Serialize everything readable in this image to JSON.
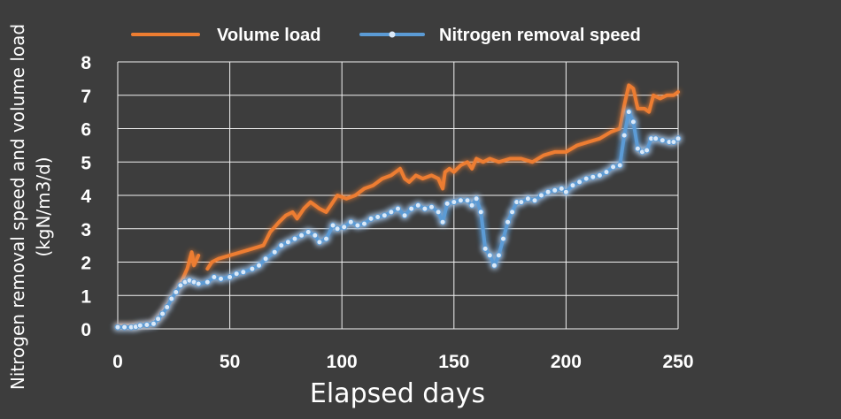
{
  "chart_data": {
    "type": "line",
    "xlabel": "Elapsed days",
    "ylabel_lines": [
      "Nitrogen removal speed and volume load",
      "(kgN/m3/d)"
    ],
    "xlim": [
      0,
      250
    ],
    "ylim": [
      0,
      8
    ],
    "x_ticks": [
      "0",
      "50",
      "100",
      "150",
      "200",
      "250"
    ],
    "y_ticks": [
      "0",
      "1",
      "2",
      "3",
      "4",
      "5",
      "6",
      "7",
      "8"
    ],
    "grid": true,
    "legend_position": "top",
    "series": [
      {
        "name": "Volume load",
        "color": "#ed7d31",
        "marker": false,
        "segments": [
          [
            [
              0,
              0.1
            ],
            [
              5,
              0.1
            ],
            [
              10,
              0.1
            ],
            [
              15,
              0.15
            ],
            [
              18,
              0.3
            ],
            [
              20,
              0.5
            ],
            [
              23,
              0.8
            ],
            [
              26,
              1.1
            ],
            [
              29,
              1.5
            ],
            [
              31,
              1.8
            ],
            [
              33,
              2.3
            ],
            [
              34,
              1.9
            ],
            [
              36,
              2.2
            ]
          ],
          [
            [
              40,
              1.8
            ],
            [
              42,
              2.0
            ],
            [
              45,
              2.1
            ],
            [
              50,
              2.2
            ],
            [
              55,
              2.3
            ],
            [
              60,
              2.4
            ],
            [
              65,
              2.5
            ],
            [
              68,
              2.9
            ],
            [
              72,
              3.2
            ],
            [
              75,
              3.4
            ],
            [
              78,
              3.5
            ],
            [
              80,
              3.3
            ],
            [
              83,
              3.6
            ],
            [
              86,
              3.8
            ],
            [
              90,
              3.6
            ],
            [
              93,
              3.5
            ],
            [
              96,
              3.8
            ],
            [
              98,
              4.0
            ],
            [
              102,
              3.9
            ],
            [
              106,
              4.0
            ],
            [
              110,
              4.2
            ],
            [
              114,
              4.3
            ],
            [
              118,
              4.5
            ],
            [
              122,
              4.6
            ],
            [
              126,
              4.8
            ],
            [
              128,
              4.5
            ],
            [
              130,
              4.4
            ],
            [
              133,
              4.6
            ],
            [
              136,
              4.5
            ],
            [
              140,
              4.6
            ],
            [
              143,
              4.5
            ],
            [
              145,
              4.2
            ],
            [
              146,
              4.7
            ],
            [
              148,
              4.8
            ],
            [
              150,
              4.7
            ],
            [
              153,
              4.9
            ],
            [
              156,
              5.0
            ],
            [
              158,
              4.8
            ],
            [
              160,
              5.1
            ],
            [
              163,
              5.0
            ],
            [
              166,
              5.1
            ],
            [
              170,
              5.0
            ],
            [
              175,
              5.1
            ],
            [
              180,
              5.1
            ],
            [
              185,
              5.0
            ],
            [
              190,
              5.2
            ],
            [
              195,
              5.3
            ],
            [
              200,
              5.3
            ],
            [
              205,
              5.5
            ],
            [
              210,
              5.6
            ],
            [
              215,
              5.7
            ],
            [
              220,
              5.9
            ],
            [
              224,
              6.0
            ],
            [
              226,
              6.7
            ],
            [
              228,
              7.3
            ],
            [
              230,
              7.2
            ],
            [
              232,
              6.6
            ],
            [
              235,
              6.6
            ],
            [
              237,
              6.5
            ],
            [
              239,
              7.0
            ],
            [
              242,
              6.9
            ],
            [
              245,
              7.0
            ],
            [
              248,
              7.0
            ],
            [
              250,
              7.1
            ]
          ]
        ]
      },
      {
        "name": "Nitrogen removal speed",
        "color": "#5b9bd5",
        "marker": true,
        "segments": [
          [
            [
              0,
              0.05
            ],
            [
              3,
              0.05
            ],
            [
              6,
              0.05
            ],
            [
              8,
              0.06
            ],
            [
              10,
              0.1
            ],
            [
              13,
              0.12
            ],
            [
              16,
              0.15
            ],
            [
              18,
              0.3
            ],
            [
              20,
              0.45
            ],
            [
              22,
              0.65
            ],
            [
              24,
              0.9
            ],
            [
              26,
              1.1
            ],
            [
              28,
              1.3
            ],
            [
              30,
              1.4
            ],
            [
              32,
              1.45
            ],
            [
              34,
              1.4
            ],
            [
              36,
              1.35
            ],
            [
              40,
              1.4
            ],
            [
              43,
              1.55
            ],
            [
              46,
              1.5
            ],
            [
              50,
              1.55
            ],
            [
              53,
              1.65
            ],
            [
              56,
              1.7
            ],
            [
              60,
              1.8
            ],
            [
              63,
              1.9
            ],
            [
              66,
              2.1
            ],
            [
              70,
              2.3
            ],
            [
              73,
              2.5
            ],
            [
              76,
              2.6
            ],
            [
              79,
              2.7
            ],
            [
              82,
              2.8
            ],
            [
              85,
              2.9
            ],
            [
              88,
              2.8
            ],
            [
              90,
              2.6
            ],
            [
              93,
              2.7
            ],
            [
              96,
              3.1
            ],
            [
              98,
              3.0
            ],
            [
              101,
              3.05
            ],
            [
              104,
              3.2
            ],
            [
              107,
              3.1
            ],
            [
              110,
              3.15
            ],
            [
              113,
              3.3
            ],
            [
              116,
              3.35
            ],
            [
              119,
              3.4
            ],
            [
              122,
              3.5
            ],
            [
              125,
              3.6
            ],
            [
              128,
              3.4
            ],
            [
              131,
              3.6
            ],
            [
              134,
              3.7
            ],
            [
              137,
              3.6
            ],
            [
              140,
              3.65
            ],
            [
              143,
              3.5
            ],
            [
              145,
              3.2
            ],
            [
              147,
              3.75
            ],
            [
              150,
              3.8
            ],
            [
              153,
              3.85
            ],
            [
              156,
              3.85
            ],
            [
              158,
              3.7
            ],
            [
              160,
              3.9
            ],
            [
              162,
              3.5
            ],
            [
              164,
              2.4
            ],
            [
              166,
              2.2
            ],
            [
              168,
              1.9
            ],
            [
              170,
              2.2
            ],
            [
              172,
              2.7
            ],
            [
              174,
              3.2
            ],
            [
              176,
              3.5
            ],
            [
              178,
              3.8
            ],
            [
              180,
              3.8
            ],
            [
              183,
              3.9
            ],
            [
              186,
              3.85
            ],
            [
              189,
              4.0
            ],
            [
              192,
              4.1
            ],
            [
              195,
              4.15
            ],
            [
              198,
              4.2
            ],
            [
              200,
              4.1
            ],
            [
              203,
              4.3
            ],
            [
              206,
              4.4
            ],
            [
              209,
              4.5
            ],
            [
              212,
              4.55
            ],
            [
              215,
              4.6
            ],
            [
              218,
              4.7
            ],
            [
              221,
              4.85
            ],
            [
              224,
              4.9
            ],
            [
              226,
              5.8
            ],
            [
              228,
              6.5
            ],
            [
              230,
              6.2
            ],
            [
              232,
              5.4
            ],
            [
              234,
              5.3
            ],
            [
              236,
              5.35
            ],
            [
              238,
              5.7
            ],
            [
              240,
              5.7
            ],
            [
              243,
              5.65
            ],
            [
              246,
              5.6
            ],
            [
              248,
              5.6
            ],
            [
              250,
              5.7
            ]
          ]
        ]
      }
    ]
  }
}
